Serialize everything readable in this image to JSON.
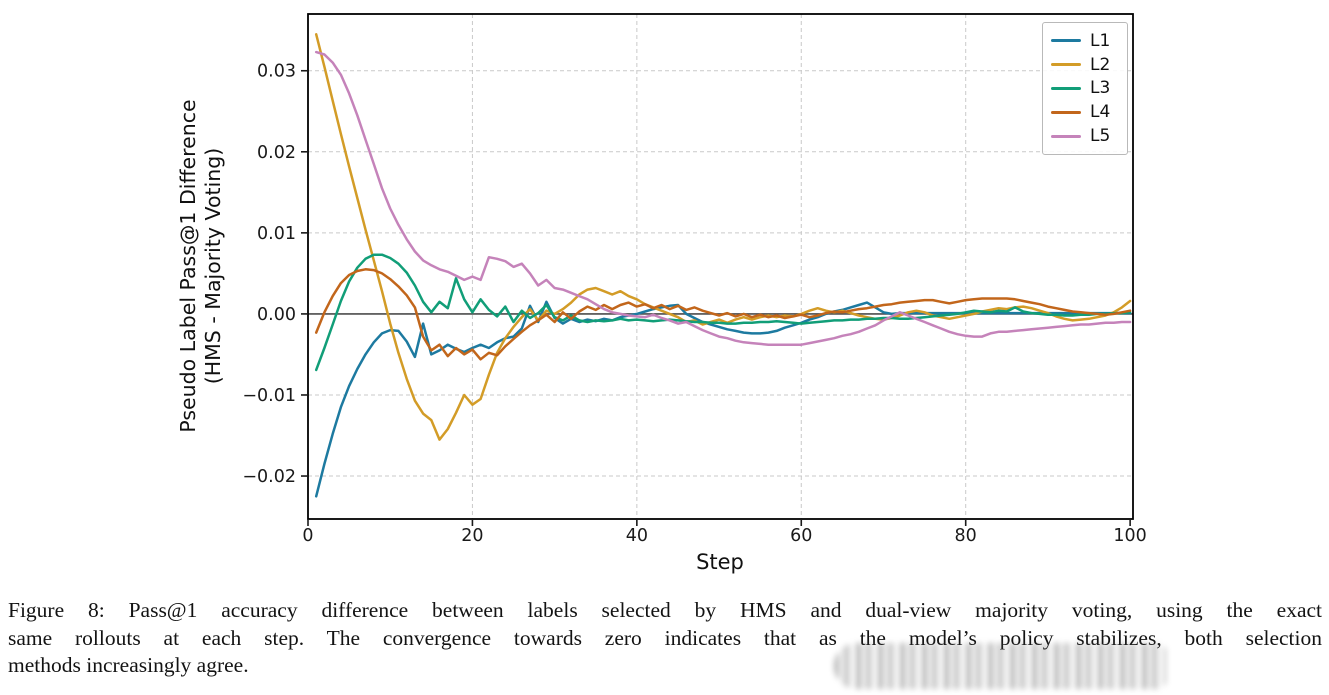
{
  "caption": {
    "lines": [
      "Figure 8: Pass@1 accuracy difference between labels selected by HMS and dual-view majority voting, using the exact",
      "same rollouts at each step. The convergence towards zero indicates that as the model’s policy stabilizes, both selection",
      "methods increasingly agree."
    ]
  },
  "chart_data": {
    "type": "line",
    "title": "",
    "xlabel": "Step",
    "ylabel_line1": "Pseudo Label Pass@1 Difference",
    "ylabel_line2": "(HMS - Majority Voting)",
    "xlim": [
      0,
      100.35
    ],
    "ylim": [
      -0.0253,
      0.037
    ],
    "grid": true,
    "grid_style": "dashed",
    "zero_line": true,
    "zero_line_color": "#4d4d4d",
    "legend_position": "upper right",
    "x_ticks": [
      {
        "v": 0,
        "label": "0"
      },
      {
        "v": 20,
        "label": "20"
      },
      {
        "v": 40,
        "label": "40"
      },
      {
        "v": 60,
        "label": "60"
      },
      {
        "v": 80,
        "label": "80"
      },
      {
        "v": 100,
        "label": "100"
      }
    ],
    "y_ticks": [
      {
        "v": 0.03,
        "label": "0.03"
      },
      {
        "v": 0.02,
        "label": "0.02"
      },
      {
        "v": 0.01,
        "label": "0.01"
      },
      {
        "v": 0.0,
        "label": "0.00"
      },
      {
        "v": -0.01,
        "label": "−0.01"
      },
      {
        "v": -0.02,
        "label": "−0.02"
      }
    ],
    "x_range": {
      "start": 1,
      "end": 100,
      "step": 1
    },
    "series": [
      {
        "name": "L1",
        "color": "#1d7aa0",
        "values": [
          -0.0225,
          -0.0185,
          -0.0148,
          -0.0115,
          -0.0089,
          -0.0068,
          -0.005,
          -0.0035,
          -0.0024,
          -0.002,
          -0.0021,
          -0.0034,
          -0.0053,
          -0.0012,
          -0.005,
          -0.0045,
          -0.0038,
          -0.0043,
          -0.0047,
          -0.0042,
          -0.0038,
          -0.0042,
          -0.0035,
          -0.003,
          -0.0028,
          -0.0018,
          0.001,
          -0.001,
          0.0015,
          -0.0005,
          -0.0012,
          -0.0006,
          -0.001,
          -0.0007,
          -0.0009,
          -0.0006,
          -0.0008,
          -0.0004,
          -0.0002,
          0.0,
          0.0003,
          0.0006,
          0.0008,
          0.001,
          0.0011,
          0.0,
          -0.0005,
          -0.001,
          -0.0013,
          -0.0016,
          -0.0019,
          -0.0021,
          -0.0023,
          -0.0024,
          -0.0024,
          -0.0023,
          -0.0021,
          -0.0017,
          -0.0014,
          -0.0011,
          -0.0007,
          -0.0004,
          0.0,
          0.0003,
          0.0005,
          0.0008,
          0.0011,
          0.0014,
          0.0008,
          0.0002,
          0.0,
          0.0001,
          0.0001,
          0.0001,
          0.0001,
          0.0001,
          0.0001,
          0.0001,
          0.0001,
          0.0001,
          0.0001,
          0.0001,
          0.0001,
          0.0001,
          0.0001,
          0.0001,
          0.0001,
          0.0001,
          0.0001,
          0.0001,
          0.0001,
          0.0001,
          0.0001,
          0.0001,
          0.0001,
          0.0001,
          0.0001,
          0.0001,
          0.0001,
          0.0001
        ]
      },
      {
        "name": "L2",
        "color": "#d39c27",
        "values": [
          0.0345,
          0.0305,
          0.0263,
          0.0222,
          0.0182,
          0.0143,
          0.0104,
          0.0066,
          0.0028,
          -0.0012,
          -0.0048,
          -0.008,
          -0.0107,
          -0.0123,
          -0.0131,
          -0.0155,
          -0.0142,
          -0.0122,
          -0.01,
          -0.0112,
          -0.0105,
          -0.0075,
          -0.0048,
          -0.003,
          -0.0016,
          -0.0004,
          0.0006,
          -0.0008,
          0.0004,
          0.0,
          0.0006,
          0.0014,
          0.0024,
          0.003,
          0.0032,
          0.0028,
          0.0024,
          0.0028,
          0.0022,
          0.0018,
          0.0012,
          0.0008,
          0.0004,
          0.0,
          -0.0004,
          -0.001,
          -0.0008,
          -0.0013,
          -0.001,
          -0.0007,
          -0.0011,
          -0.0007,
          -0.0004,
          -0.0007,
          -0.0004,
          -0.0002,
          -0.0004,
          -0.0002,
          -0.0003,
          0.0,
          0.0004,
          0.0007,
          0.0004,
          0.0002,
          0.0004,
          0.0001,
          -0.0002,
          -0.0004,
          -0.0006,
          -0.0007,
          -0.0005,
          -0.0002,
          0.0002,
          0.0004,
          0.0002,
          -0.0002,
          -0.0004,
          -0.0006,
          -0.0004,
          -0.0002,
          0.0,
          0.0003,
          0.0005,
          0.0007,
          0.0006,
          0.0008,
          0.0009,
          0.0007,
          0.0004,
          0.0001,
          -0.0003,
          -0.0006,
          -0.0008,
          -0.0007,
          -0.0006,
          -0.0004,
          -0.0002,
          0.0002,
          0.0008,
          0.0016
        ]
      },
      {
        "name": "L3",
        "color": "#119e78",
        "values": [
          -0.0069,
          -0.0042,
          -0.0013,
          0.0016,
          0.004,
          0.0057,
          0.0068,
          0.0073,
          0.0073,
          0.0069,
          0.0062,
          0.0051,
          0.0035,
          0.0015,
          0.0002,
          0.0015,
          0.0007,
          0.0044,
          0.0018,
          0.0002,
          0.0018,
          0.0005,
          -0.0003,
          0.0009,
          -0.001,
          0.0004,
          -0.0005,
          0.0001,
          0.0011,
          -0.0004,
          -0.0008,
          -0.0002,
          -0.0008,
          -0.001,
          -0.0008,
          -0.0009,
          -0.0008,
          -0.0006,
          -0.0008,
          -0.0007,
          -0.0008,
          -0.0009,
          -0.0008,
          -0.0007,
          -0.0008,
          -0.0009,
          -0.001,
          -0.001,
          -0.0011,
          -0.0011,
          -0.0012,
          -0.0012,
          -0.0011,
          -0.0011,
          -0.001,
          -0.001,
          -0.0009,
          -0.001,
          -0.0011,
          -0.0012,
          -0.0011,
          -0.001,
          -0.0009,
          -0.0008,
          -0.0008,
          -0.0007,
          -0.0007,
          -0.0006,
          -0.0006,
          -0.0005,
          -0.0005,
          -0.0006,
          -0.0006,
          -0.0005,
          -0.0004,
          -0.0003,
          -0.0002,
          -0.0001,
          0.0,
          0.0002,
          0.0004,
          0.0003,
          0.0002,
          0.0004,
          0.0003,
          0.0008,
          0.0003,
          0.0001,
          0.0,
          -0.0001,
          -0.0001,
          -0.0002,
          -0.0002,
          -0.0001,
          -0.0001,
          0.0,
          0.0,
          0.0001,
          0.0001,
          0.0002
        ]
      },
      {
        "name": "L4",
        "color": "#c2661b",
        "values": [
          -0.0023,
          0.0002,
          0.0022,
          0.0038,
          0.0048,
          0.0053,
          0.0055,
          0.0054,
          0.005,
          0.0043,
          0.0034,
          0.0023,
          0.0008,
          -0.0028,
          -0.0045,
          -0.0038,
          -0.0052,
          -0.0042,
          -0.005,
          -0.0044,
          -0.0056,
          -0.0048,
          -0.0051,
          -0.004,
          -0.0031,
          -0.0022,
          -0.0014,
          -0.0008,
          -0.0001,
          -0.001,
          0.0002,
          -0.0006,
          0.0003,
          0.0009,
          0.0005,
          0.0011,
          0.0006,
          0.0011,
          0.0014,
          0.0009,
          0.0012,
          0.0007,
          0.0011,
          0.0006,
          0.001,
          0.0005,
          0.0008,
          0.0004,
          0.0001,
          -0.0002,
          0.0001,
          -0.0003,
          0.0,
          -0.0004,
          -0.0001,
          -0.0004,
          -0.0002,
          -0.0005,
          -0.0003,
          -0.0001,
          -0.0004,
          -0.0002,
          0.0001,
          0.0003,
          0.0002,
          0.0004,
          0.0006,
          0.0007,
          0.0009,
          0.0011,
          0.0012,
          0.0014,
          0.0015,
          0.0016,
          0.0017,
          0.0017,
          0.0015,
          0.0013,
          0.0015,
          0.0017,
          0.0018,
          0.0019,
          0.0019,
          0.0019,
          0.0019,
          0.0018,
          0.0016,
          0.0014,
          0.0012,
          0.0009,
          0.0007,
          0.0005,
          0.0003,
          0.0002,
          0.0001,
          0.0,
          -0.0001,
          0.0,
          0.0002,
          0.0004
        ]
      },
      {
        "name": "L5",
        "color": "#c583ba",
        "values": [
          0.0323,
          0.032,
          0.031,
          0.0295,
          0.0272,
          0.0245,
          0.0215,
          0.0185,
          0.0155,
          0.013,
          0.011,
          0.0092,
          0.0077,
          0.0066,
          0.006,
          0.0055,
          0.0052,
          0.0047,
          0.0042,
          0.0046,
          0.0042,
          0.007,
          0.0068,
          0.0065,
          0.0058,
          0.0062,
          0.005,
          0.0035,
          0.0042,
          0.0032,
          0.003,
          0.0026,
          0.0022,
          0.0018,
          0.0012,
          0.0006,
          0.0002,
          0.0,
          -0.0002,
          -0.0003,
          -0.0004,
          -0.0001,
          -0.0005,
          -0.0008,
          -0.0012,
          -0.001,
          -0.0015,
          -0.002,
          -0.0024,
          -0.0028,
          -0.003,
          -0.0033,
          -0.0035,
          -0.0036,
          -0.0037,
          -0.0038,
          -0.0038,
          -0.0038,
          -0.0038,
          -0.0038,
          -0.0036,
          -0.0034,
          -0.0032,
          -0.003,
          -0.0027,
          -0.0025,
          -0.0022,
          -0.0018,
          -0.0014,
          -0.0008,
          -0.0003,
          0.0002,
          -0.0002,
          -0.0006,
          -0.001,
          -0.0014,
          -0.0018,
          -0.0022,
          -0.0025,
          -0.0027,
          -0.0028,
          -0.0028,
          -0.0024,
          -0.0022,
          -0.0022,
          -0.0021,
          -0.002,
          -0.0019,
          -0.0018,
          -0.0017,
          -0.0016,
          -0.0015,
          -0.0014,
          -0.0013,
          -0.0013,
          -0.0012,
          -0.0011,
          -0.0011,
          -0.001,
          -0.001
        ]
      }
    ]
  }
}
